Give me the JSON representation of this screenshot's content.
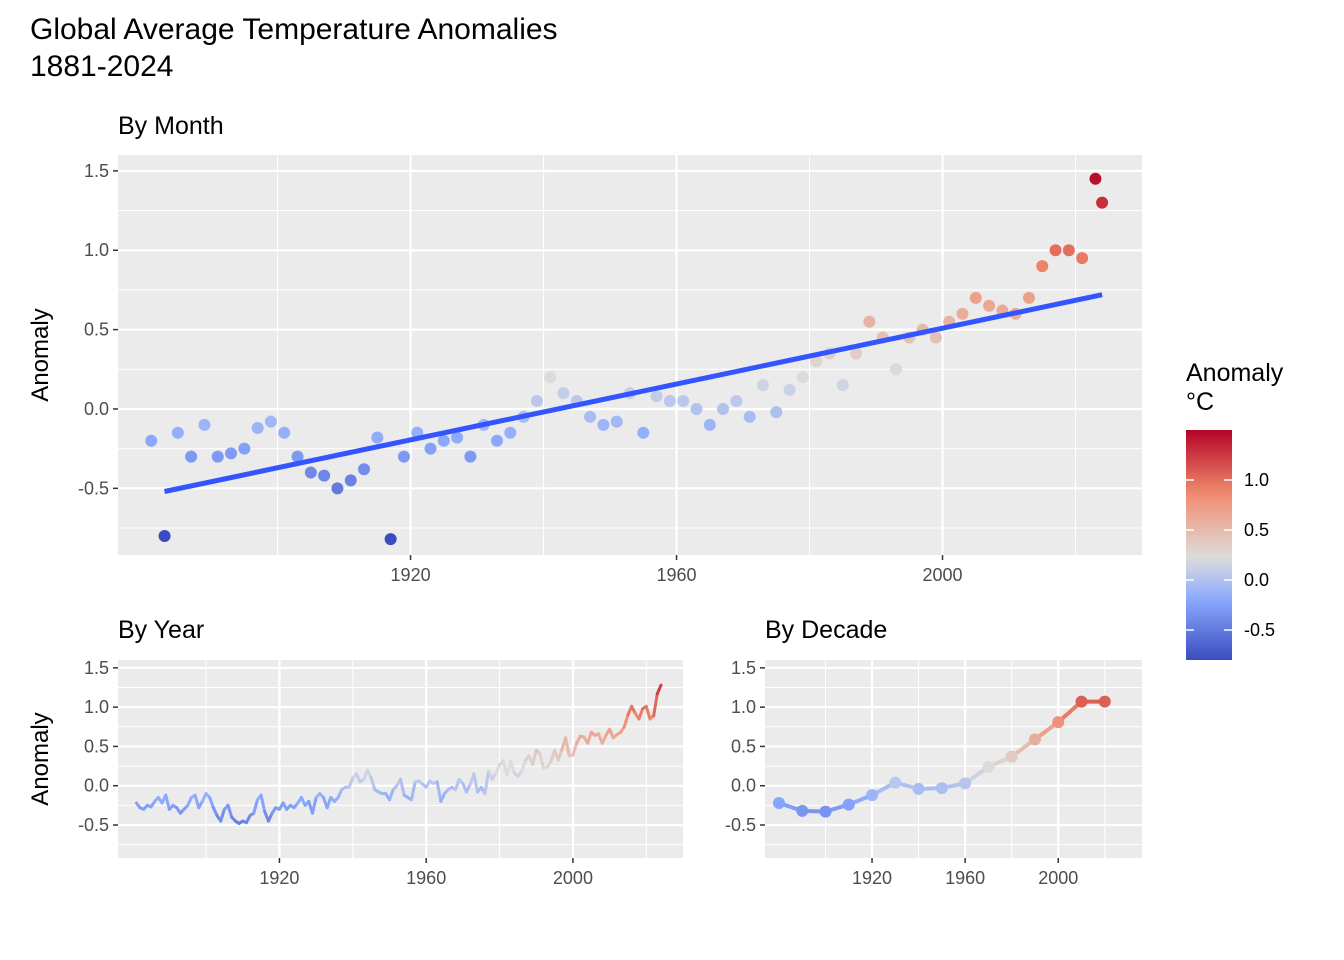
{
  "title_line1": "Global Average Temperature Anomalies",
  "title_line2": "1881-2024",
  "legend": {
    "title_line1": "Anomaly",
    "title_line2": "°C",
    "ticks": [
      1.0,
      0.5,
      0.0,
      -0.5
    ],
    "tick_labels": [
      "1.0",
      "0.5",
      "0.0",
      "-0.5"
    ],
    "range": [
      -0.8,
      1.5
    ]
  },
  "colors": {
    "low": "#3b4cc0",
    "mid": "#dddddd",
    "high": "#b40426",
    "trend": "#3355ff",
    "panel_bg": "#ebebeb",
    "grid": "#ffffff"
  },
  "chart_data": [
    {
      "type": "scatter",
      "title": "By Month",
      "ylabel": "Anomaly",
      "xlabel": "",
      "xlim": [
        1876,
        2030
      ],
      "ylim": [
        -0.92,
        1.6
      ],
      "x_ticks": [
        1920,
        1960,
        2000
      ],
      "x_tick_labels": [
        "1920",
        "1960",
        "2000"
      ],
      "y_ticks": [
        -0.5,
        0.0,
        0.5,
        1.0,
        1.5
      ],
      "y_tick_labels": [
        "-0.5",
        "0.0",
        "0.5",
        "1.0",
        "1.5"
      ],
      "trend_line": {
        "x": [
          1883,
          2024
        ],
        "y": [
          -0.52,
          0.72
        ]
      },
      "x": [
        1881,
        1883,
        1885,
        1887,
        1889,
        1891,
        1893,
        1895,
        1897,
        1899,
        1901,
        1903,
        1905,
        1907,
        1909,
        1911,
        1913,
        1915,
        1917,
        1919,
        1921,
        1923,
        1925,
        1927,
        1929,
        1931,
        1933,
        1935,
        1937,
        1939,
        1941,
        1943,
        1945,
        1947,
        1949,
        1951,
        1953,
        1955,
        1957,
        1959,
        1961,
        1963,
        1965,
        1967,
        1969,
        1971,
        1973,
        1975,
        1977,
        1979,
        1981,
        1983,
        1985,
        1987,
        1989,
        1991,
        1993,
        1995,
        1997,
        1999,
        2001,
        2003,
        2005,
        2007,
        2009,
        2011,
        2013,
        2015,
        2017,
        2019,
        2021,
        2023,
        2024
      ],
      "y": [
        -0.2,
        -0.8,
        -0.15,
        -0.3,
        -0.1,
        -0.3,
        -0.28,
        -0.25,
        -0.12,
        -0.08,
        -0.15,
        -0.3,
        -0.4,
        -0.42,
        -0.5,
        -0.45,
        -0.38,
        -0.18,
        -0.82,
        -0.3,
        -0.15,
        -0.25,
        -0.2,
        -0.18,
        -0.3,
        -0.1,
        -0.2,
        -0.15,
        -0.05,
        0.05,
        0.2,
        0.1,
        0.05,
        -0.05,
        -0.1,
        -0.08,
        0.1,
        -0.15,
        0.08,
        0.05,
        0.05,
        0.0,
        -0.1,
        0.0,
        0.05,
        -0.05,
        0.15,
        -0.02,
        0.12,
        0.2,
        0.3,
        0.35,
        0.15,
        0.35,
        0.55,
        0.45,
        0.25,
        0.45,
        0.5,
        0.45,
        0.55,
        0.6,
        0.7,
        0.65,
        0.62,
        0.6,
        0.7,
        0.9,
        1.0,
        1.0,
        0.95,
        1.45,
        1.3
      ]
    },
    {
      "type": "line",
      "title": "By Year",
      "ylabel": "Anomaly",
      "xlabel": "",
      "xlim": [
        1876,
        2030
      ],
      "ylim": [
        -0.92,
        1.6
      ],
      "x_ticks": [
        1920,
        1960,
        2000
      ],
      "x_tick_labels": [
        "1920",
        "1960",
        "2000"
      ],
      "y_ticks": [
        -0.5,
        0.0,
        0.5,
        1.0,
        1.5
      ],
      "y_tick_labels": [
        "-0.5",
        "0.0",
        "0.5",
        "1.0",
        "1.5"
      ],
      "x": [
        1881,
        1882,
        1883,
        1884,
        1885,
        1886,
        1887,
        1888,
        1889,
        1890,
        1891,
        1892,
        1893,
        1894,
        1895,
        1896,
        1897,
        1898,
        1899,
        1900,
        1901,
        1902,
        1903,
        1904,
        1905,
        1906,
        1907,
        1908,
        1909,
        1910,
        1911,
        1912,
        1913,
        1914,
        1915,
        1916,
        1917,
        1918,
        1919,
        1920,
        1921,
        1922,
        1923,
        1924,
        1925,
        1926,
        1927,
        1928,
        1929,
        1930,
        1931,
        1932,
        1933,
        1934,
        1935,
        1936,
        1937,
        1938,
        1939,
        1940,
        1941,
        1942,
        1943,
        1944,
        1945,
        1946,
        1947,
        1948,
        1949,
        1950,
        1951,
        1952,
        1953,
        1954,
        1955,
        1956,
        1957,
        1958,
        1959,
        1960,
        1961,
        1962,
        1963,
        1964,
        1965,
        1966,
        1967,
        1968,
        1969,
        1970,
        1971,
        1972,
        1973,
        1974,
        1975,
        1976,
        1977,
        1978,
        1979,
        1980,
        1981,
        1982,
        1983,
        1984,
        1985,
        1986,
        1987,
        1988,
        1989,
        1990,
        1991,
        1992,
        1993,
        1994,
        1995,
        1996,
        1997,
        1998,
        1999,
        2000,
        2001,
        2002,
        2003,
        2004,
        2005,
        2006,
        2007,
        2008,
        2009,
        2010,
        2011,
        2012,
        2013,
        2014,
        2015,
        2016,
        2017,
        2018,
        2019,
        2020,
        2021,
        2022,
        2023,
        2024
      ],
      "y": [
        -0.22,
        -0.28,
        -0.3,
        -0.25,
        -0.27,
        -0.2,
        -0.15,
        -0.22,
        -0.12,
        -0.3,
        -0.25,
        -0.28,
        -0.35,
        -0.3,
        -0.25,
        -0.15,
        -0.12,
        -0.28,
        -0.2,
        -0.1,
        -0.15,
        -0.28,
        -0.38,
        -0.45,
        -0.3,
        -0.25,
        -0.4,
        -0.45,
        -0.48,
        -0.45,
        -0.47,
        -0.38,
        -0.35,
        -0.18,
        -0.12,
        -0.33,
        -0.45,
        -0.35,
        -0.28,
        -0.3,
        -0.22,
        -0.3,
        -0.25,
        -0.28,
        -0.22,
        -0.15,
        -0.25,
        -0.2,
        -0.35,
        -0.15,
        -0.1,
        -0.15,
        -0.28,
        -0.15,
        -0.2,
        -0.15,
        -0.05,
        -0.02,
        -0.02,
        0.1,
        0.15,
        0.05,
        0.08,
        0.2,
        0.1,
        -0.05,
        -0.08,
        -0.1,
        -0.1,
        -0.18,
        -0.05,
        0.0,
        0.08,
        -0.12,
        -0.15,
        -0.18,
        0.05,
        0.06,
        0.02,
        -0.02,
        0.06,
        0.03,
        0.05,
        -0.2,
        -0.1,
        -0.05,
        -0.02,
        -0.05,
        0.08,
        0.03,
        -0.08,
        0.02,
        0.15,
        -0.08,
        -0.02,
        -0.1,
        0.18,
        0.08,
        0.16,
        0.26,
        0.32,
        0.14,
        0.31,
        0.16,
        0.12,
        0.18,
        0.32,
        0.38,
        0.27,
        0.45,
        0.41,
        0.22,
        0.24,
        0.31,
        0.45,
        0.33,
        0.46,
        0.61,
        0.38,
        0.39,
        0.54,
        0.63,
        0.62,
        0.54,
        0.68,
        0.64,
        0.66,
        0.54,
        0.64,
        0.72,
        0.61,
        0.65,
        0.68,
        0.75,
        0.9,
        1.01,
        0.92,
        0.85,
        0.98,
        1.01,
        0.85,
        0.89,
        1.17,
        1.28
      ]
    },
    {
      "type": "line",
      "title": "By Decade",
      "ylabel": "",
      "xlabel": "",
      "xlim": [
        1874,
        2036
      ],
      "ylim": [
        -0.92,
        1.6
      ],
      "x_ticks": [
        1920,
        1960,
        2000
      ],
      "x_tick_labels": [
        "1920",
        "1960",
        "2000"
      ],
      "y_ticks": [
        -0.5,
        0.0,
        0.5,
        1.0,
        1.5
      ],
      "y_tick_labels": [
        "-0.5",
        "0.0",
        "0.5",
        "1.0",
        "1.5"
      ],
      "x": [
        1880,
        1890,
        1900,
        1910,
        1920,
        1930,
        1940,
        1950,
        1960,
        1970,
        1980,
        1990,
        2000,
        2010,
        2020
      ],
      "y": [
        -0.22,
        -0.32,
        -0.33,
        -0.24,
        -0.12,
        0.04,
        -0.04,
        -0.03,
        0.03,
        0.24,
        0.37,
        0.59,
        0.81,
        1.07,
        1.07
      ]
    }
  ]
}
